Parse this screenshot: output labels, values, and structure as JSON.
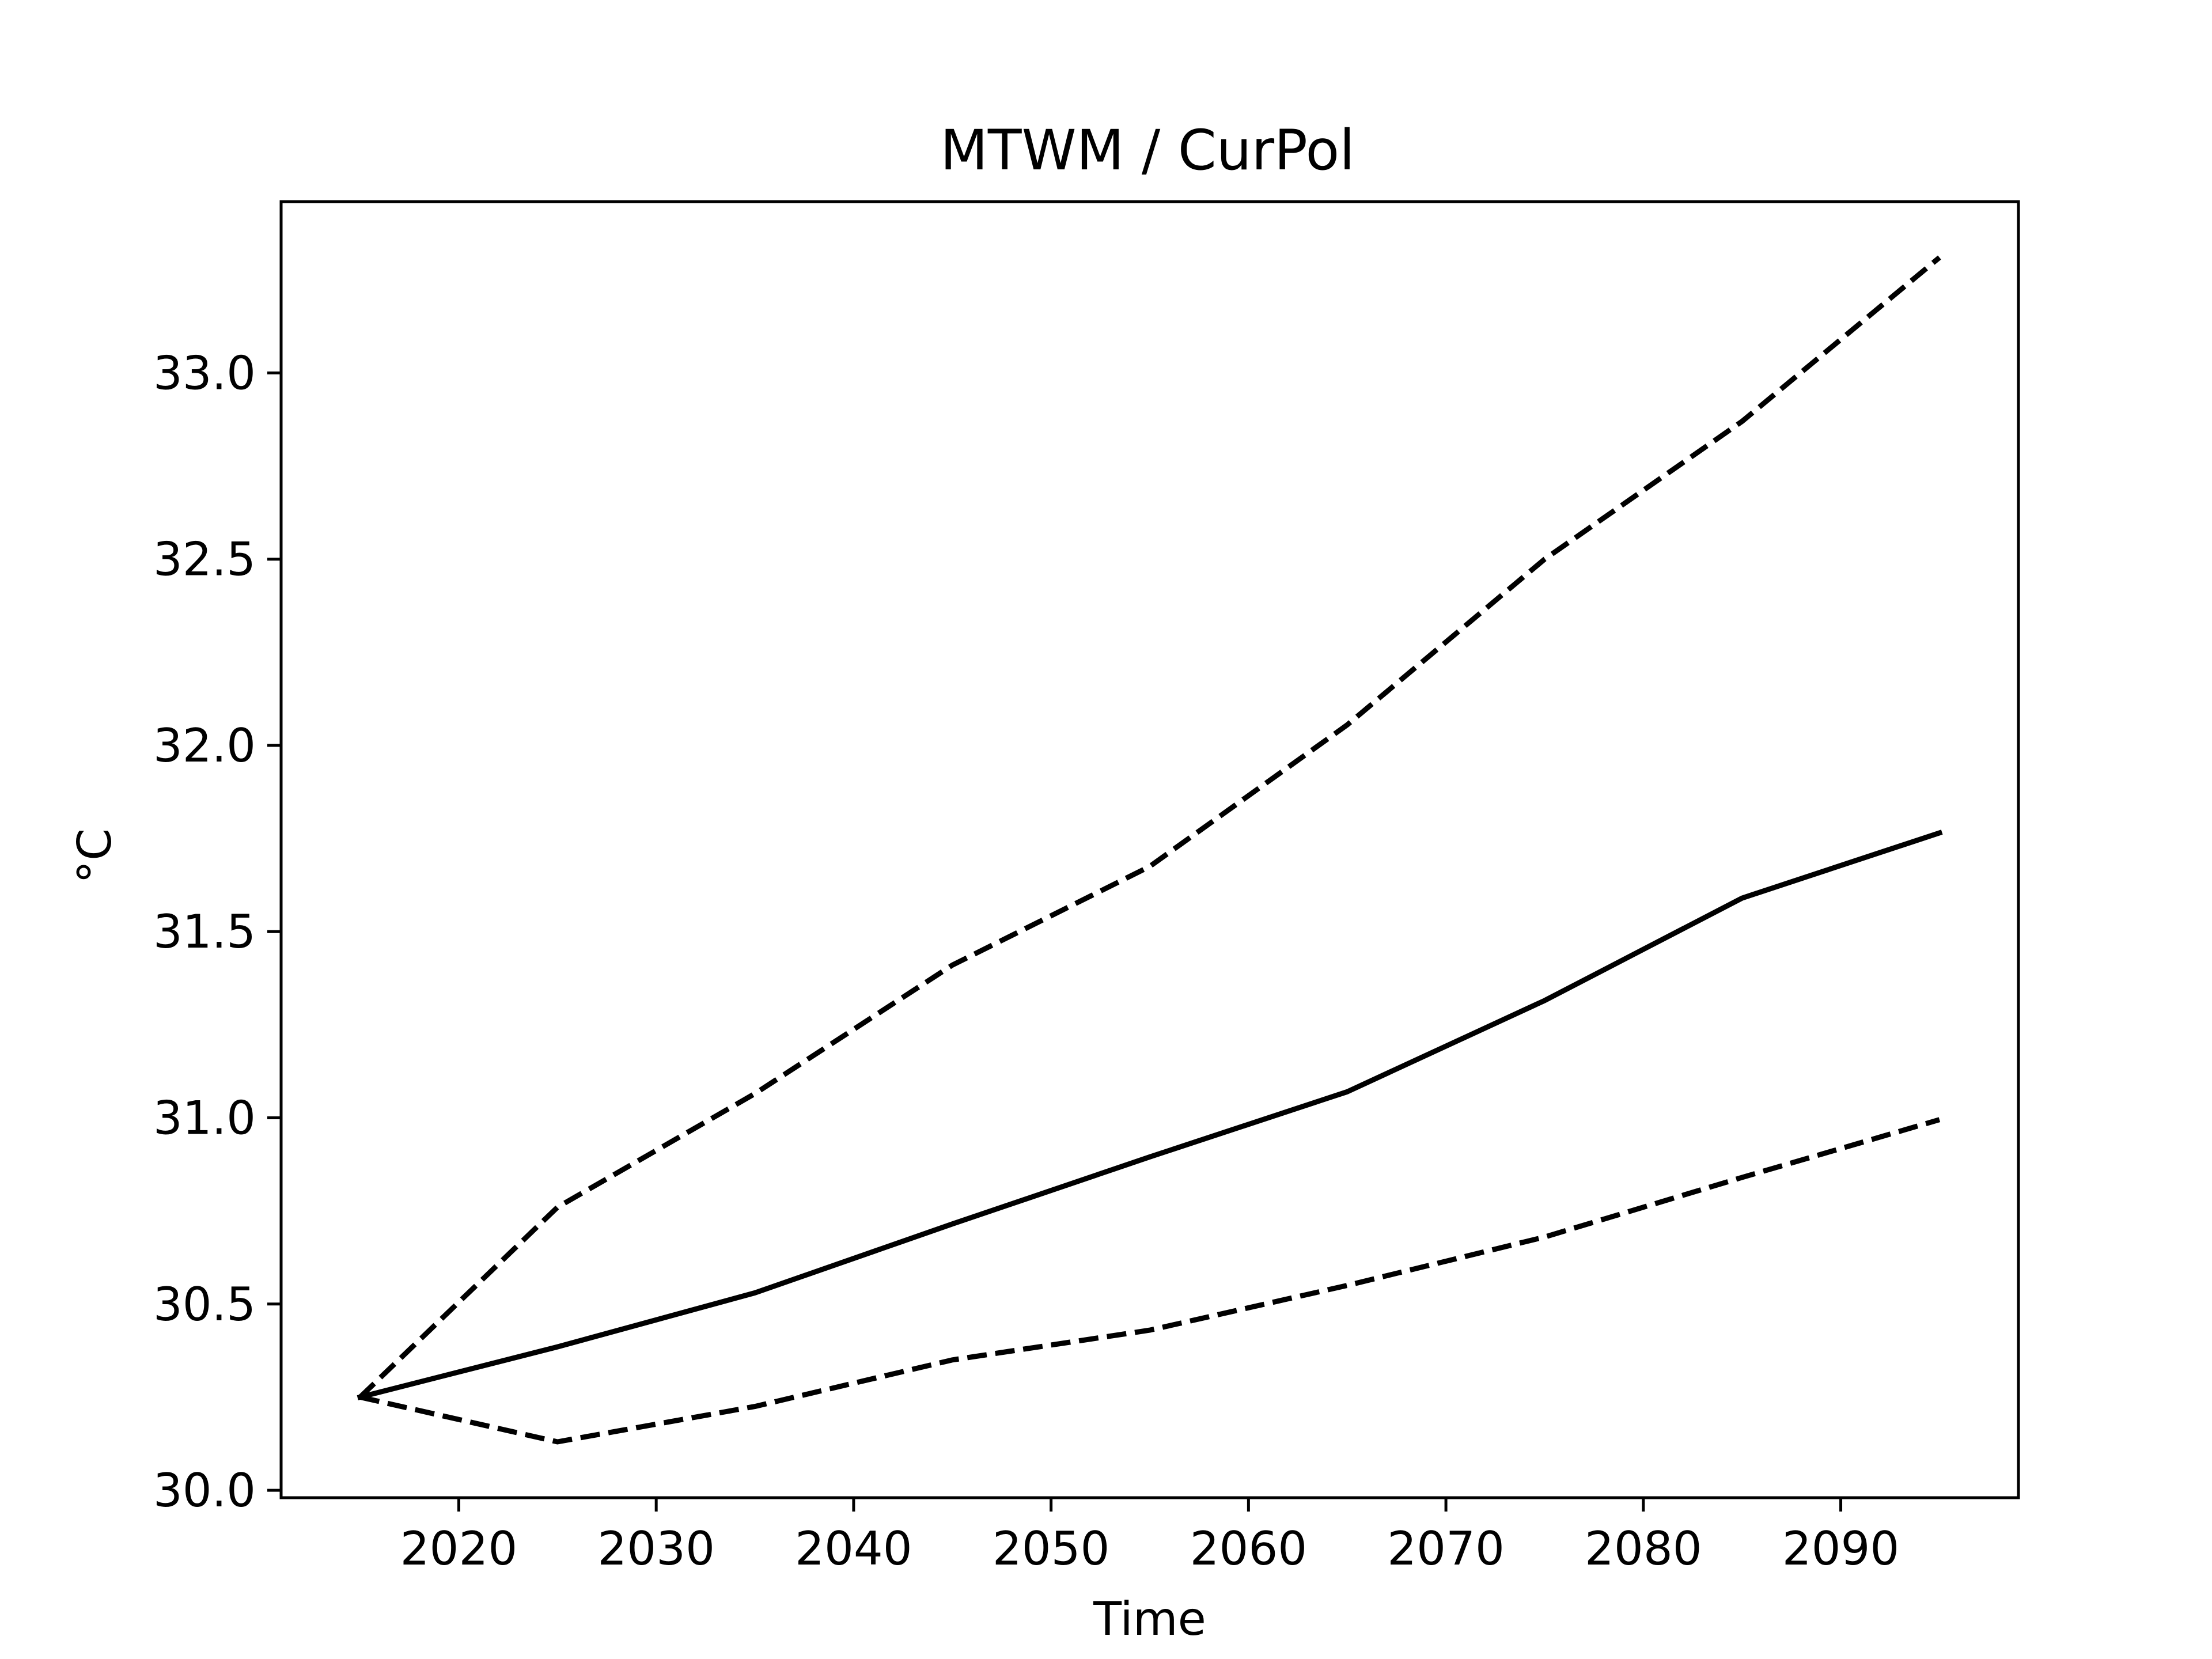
{
  "chart_data": {
    "type": "line",
    "title": "MTWM / CurPol",
    "xlabel": "Time",
    "ylabel": "°C",
    "xlim": [
      2011,
      2099
    ],
    "ylim": [
      29.98,
      33.46
    ],
    "xticks": [
      2020,
      2030,
      2040,
      2050,
      2060,
      2070,
      2080,
      2090
    ],
    "yticks": [
      30.0,
      30.5,
      31.0,
      31.5,
      32.0,
      32.5,
      33.0
    ],
    "ytick_labels": [
      "30.0",
      "30.5",
      "31.0",
      "31.5",
      "32.0",
      "32.5",
      "33.0"
    ],
    "xtick_labels": [
      "2020",
      "2030",
      "2040",
      "2050",
      "2060",
      "2070",
      "2080",
      "2090"
    ],
    "grid": false,
    "legend": "none",
    "series": [
      {
        "style": "solid",
        "color": "#000000",
        "x": [
          2015,
          2025,
          2035,
          2045,
          2055,
          2065,
          2075,
          2085,
          2095
        ],
        "y": [
          30.25,
          30.385,
          30.53,
          30.715,
          30.895,
          31.07,
          31.315,
          31.59,
          31.765
        ]
      },
      {
        "style": "dashed",
        "color": "#000000",
        "x": [
          2015,
          2025,
          2035,
          2045,
          2055,
          2065,
          2075,
          2085,
          2095
        ],
        "y": [
          30.25,
          30.76,
          31.065,
          31.41,
          31.675,
          32.055,
          32.5,
          32.87,
          33.31
        ]
      },
      {
        "style": "dashed",
        "color": "#000000",
        "x": [
          2015,
          2025,
          2035,
          2045,
          2055,
          2065,
          2075,
          2085,
          2095
        ],
        "y": [
          30.25,
          30.13,
          30.225,
          30.35,
          30.43,
          30.55,
          30.68,
          30.84,
          30.995
        ]
      }
    ]
  }
}
